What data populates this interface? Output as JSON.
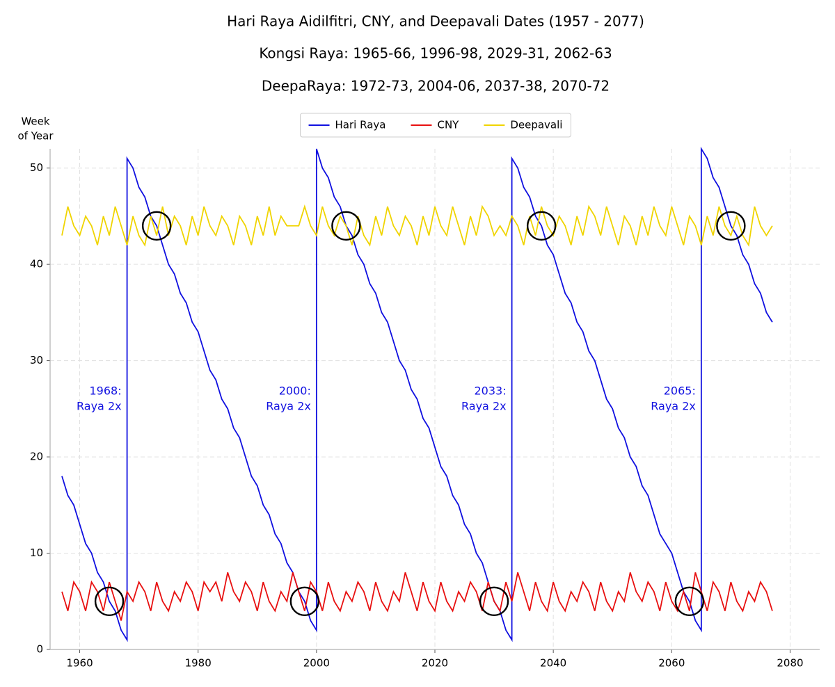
{
  "chart_data": {
    "type": "line",
    "title": "Hari Raya Aidilfitri, CNY, and Deepavali Dates (1957 - 2077)",
    "subtitles": [
      "Kongsi Raya: 1965-66, 1996-98, 2029-31, 2062-63",
      "DeepaRaya: 1972-73, 2004-06, 2037-38, 2070-72"
    ],
    "ylabel": [
      "Week",
      "of Year"
    ],
    "xlim": [
      1955,
      2085
    ],
    "ylim": [
      0,
      52
    ],
    "xticks": [
      1960,
      1980,
      2000,
      2020,
      2040,
      2060,
      2080
    ],
    "yticks": [
      0,
      10,
      20,
      30,
      40,
      50
    ],
    "grid": true,
    "legend": "top",
    "x": [
      1957,
      1958,
      1959,
      1960,
      1961,
      1962,
      1963,
      1964,
      1965,
      1966,
      1967,
      1968,
      1969,
      1970,
      1971,
      1972,
      1973,
      1974,
      1975,
      1976,
      1977,
      1978,
      1979,
      1980,
      1981,
      1982,
      1983,
      1984,
      1985,
      1986,
      1987,
      1988,
      1989,
      1990,
      1991,
      1992,
      1993,
      1994,
      1995,
      1996,
      1997,
      1998,
      1999,
      2000,
      2001,
      2002,
      2003,
      2004,
      2005,
      2006,
      2007,
      2008,
      2009,
      2010,
      2011,
      2012,
      2013,
      2014,
      2015,
      2016,
      2017,
      2018,
      2019,
      2020,
      2021,
      2022,
      2023,
      2024,
      2025,
      2026,
      2027,
      2028,
      2029,
      2030,
      2031,
      2032,
      2033,
      2034,
      2035,
      2036,
      2037,
      2038,
      2039,
      2040,
      2041,
      2042,
      2043,
      2044,
      2045,
      2046,
      2047,
      2048,
      2049,
      2050,
      2051,
      2052,
      2053,
      2054,
      2055,
      2056,
      2057,
      2058,
      2059,
      2060,
      2061,
      2062,
      2063,
      2064,
      2065,
      2066,
      2067,
      2068,
      2069,
      2070,
      2071,
      2072,
      2073,
      2074,
      2075,
      2076,
      2077
    ],
    "series": [
      {
        "name": "Hari Raya",
        "color": "#1010e0",
        "x": [
          1957,
          1958,
          1959,
          1960,
          1961,
          1962,
          1963,
          1964,
          1965,
          1966,
          1967,
          1968,
          1968,
          1969,
          1970,
          1971,
          1972,
          1973,
          1974,
          1975,
          1976,
          1977,
          1978,
          1979,
          1980,
          1981,
          1982,
          1983,
          1984,
          1985,
          1986,
          1987,
          1988,
          1989,
          1990,
          1991,
          1992,
          1993,
          1994,
          1995,
          1996,
          1997,
          1998,
          1999,
          2000,
          2000,
          2001,
          2002,
          2003,
          2004,
          2005,
          2006,
          2007,
          2008,
          2009,
          2010,
          2011,
          2012,
          2013,
          2014,
          2015,
          2016,
          2017,
          2018,
          2019,
          2020,
          2021,
          2022,
          2023,
          2024,
          2025,
          2026,
          2027,
          2028,
          2029,
          2030,
          2031,
          2032,
          2033,
          2033,
          2034,
          2035,
          2036,
          2037,
          2038,
          2039,
          2040,
          2041,
          2042,
          2043,
          2044,
          2045,
          2046,
          2047,
          2048,
          2049,
          2050,
          2051,
          2052,
          2053,
          2054,
          2055,
          2056,
          2057,
          2058,
          2059,
          2060,
          2061,
          2062,
          2063,
          2064,
          2065,
          2065,
          2066,
          2067,
          2068,
          2069,
          2070,
          2071,
          2072,
          2073,
          2074,
          2075,
          2076,
          2077
        ],
        "values": [
          18,
          16,
          15,
          13,
          11,
          10,
          8,
          7,
          5,
          4,
          2,
          1,
          51,
          50,
          48,
          47,
          45,
          44,
          42,
          40,
          39,
          37,
          36,
          34,
          33,
          31,
          29,
          28,
          26,
          25,
          23,
          22,
          20,
          18,
          17,
          15,
          14,
          12,
          11,
          9,
          8,
          6,
          5,
          3,
          2,
          52,
          50,
          49,
          47,
          46,
          44,
          43,
          41,
          40,
          38,
          37,
          35,
          34,
          32,
          30,
          29,
          27,
          26,
          24,
          23,
          21,
          19,
          18,
          16,
          15,
          13,
          12,
          10,
          9,
          7,
          5,
          4,
          2,
          1,
          51,
          50,
          48,
          47,
          45,
          44,
          42,
          41,
          39,
          37,
          36,
          34,
          33,
          31,
          30,
          28,
          26,
          25,
          23,
          22,
          20,
          19,
          17,
          16,
          14,
          12,
          11,
          10,
          8,
          6,
          5,
          3,
          2,
          52,
          51,
          49,
          48,
          46,
          44,
          43,
          41,
          40,
          38,
          37,
          35,
          34
        ]
      },
      {
        "name": "CNY",
        "color": "#e81010",
        "values": [
          6,
          4,
          7,
          6,
          4,
          7,
          6,
          4,
          7,
          5,
          3,
          6,
          5,
          7,
          6,
          4,
          7,
          5,
          4,
          6,
          5,
          7,
          6,
          4,
          7,
          6,
          7,
          5,
          8,
          6,
          5,
          7,
          6,
          4,
          7,
          5,
          4,
          6,
          5,
          8,
          6,
          4,
          7,
          6,
          4,
          7,
          5,
          4,
          6,
          5,
          7,
          6,
          4,
          7,
          5,
          4,
          6,
          5,
          8,
          6,
          4,
          7,
          5,
          4,
          7,
          5,
          4,
          6,
          5,
          7,
          6,
          4,
          7,
          5,
          4,
          7,
          5,
          8,
          6,
          4,
          7,
          5,
          4,
          7,
          5,
          4,
          6,
          5,
          7,
          6,
          4,
          7,
          5,
          4,
          6,
          5,
          8,
          6,
          5,
          7,
          6,
          4,
          7,
          5,
          4,
          6,
          4,
          8,
          6,
          4,
          7,
          6,
          4,
          7,
          5,
          4,
          6,
          5,
          7,
          6,
          4
        ]
      },
      {
        "name": "Deepavali",
        "color": "#f0d400",
        "values": [
          43,
          46,
          44,
          43,
          45,
          44,
          42,
          45,
          43,
          46,
          44,
          42,
          45,
          43,
          42,
          45,
          43,
          46,
          43,
          45,
          44,
          42,
          45,
          43,
          46,
          44,
          43,
          45,
          44,
          42,
          45,
          44,
          42,
          45,
          43,
          46,
          43,
          45,
          44,
          44,
          44,
          46,
          44,
          43,
          46,
          44,
          43,
          45,
          44,
          42,
          45,
          43,
          42,
          45,
          43,
          46,
          44,
          43,
          45,
          44,
          42,
          45,
          43,
          46,
          44,
          43,
          46,
          44,
          42,
          45,
          43,
          46,
          45,
          43,
          44,
          43,
          45,
          44,
          42,
          45,
          43,
          46,
          44,
          43,
          45,
          44,
          42,
          45,
          43,
          46,
          45,
          43,
          46,
          44,
          42,
          45,
          44,
          42,
          45,
          43,
          46,
          44,
          43,
          46,
          44,
          42,
          45,
          44,
          42,
          45,
          43,
          46,
          44,
          43,
          45,
          43,
          42,
          46,
          44,
          43,
          44
        ]
      }
    ],
    "highlights": [
      {
        "x": 1965,
        "y": 5
      },
      {
        "x": 1973,
        "y": 44
      },
      {
        "x": 1998,
        "y": 5
      },
      {
        "x": 2005,
        "y": 44
      },
      {
        "x": 2030,
        "y": 5
      },
      {
        "x": 2038,
        "y": 44
      },
      {
        "x": 2063,
        "y": 5
      },
      {
        "x": 2070,
        "y": 44
      }
    ],
    "annotations": [
      {
        "lines": [
          "1968:",
          "Raya 2x"
        ],
        "x": 1968,
        "y": 26
      },
      {
        "lines": [
          "2000:",
          "Raya 2x"
        ],
        "x": 2000,
        "y": 26
      },
      {
        "lines": [
          "2033:",
          "Raya 2x"
        ],
        "x": 2033,
        "y": 26
      },
      {
        "lines": [
          "2065:",
          "Raya 2x"
        ],
        "x": 2065,
        "y": 26
      }
    ]
  }
}
